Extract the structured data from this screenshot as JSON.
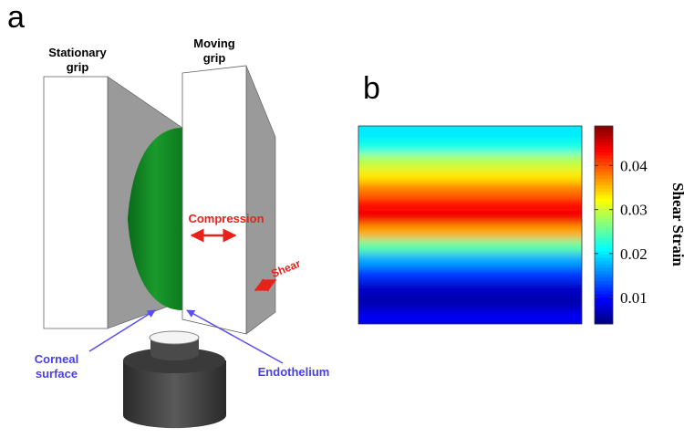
{
  "panel_a": {
    "label": "a",
    "stationary_grip": [
      "Stationary",
      "grip"
    ],
    "moving_grip": [
      "Moving",
      "grip"
    ],
    "compression": "Compression",
    "shear": "Shear",
    "corneal_surface": [
      "Corneal",
      "surface"
    ],
    "endothelium": "Endothelium"
  },
  "chart_data": {
    "type": "heatmap",
    "panel_label": "b",
    "row_values": [
      0.02,
      0.022,
      0.029,
      0.033,
      0.038,
      0.043,
      0.044,
      0.036,
      0.025,
      0.017,
      0.012,
      0.007,
      0.006,
      0.009
    ],
    "colorbar_label": "Shear Strain",
    "clim": [
      0.004,
      0.049
    ],
    "cticks": [
      0.01,
      0.02,
      0.03,
      0.04
    ]
  }
}
